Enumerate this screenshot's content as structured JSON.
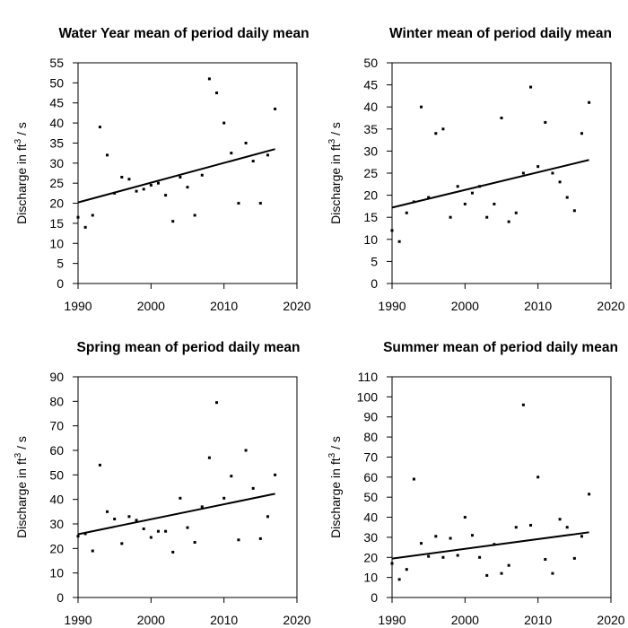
{
  "chart_data": [
    {
      "type": "scatter",
      "title": "Water Year mean of period daily mean",
      "ylabel": "Discharge in ft",
      "ylabel_sup": "3",
      "ylabel_suffix": " / s",
      "xlim": [
        1990,
        2020
      ],
      "ylim": [
        0,
        55
      ],
      "xticks": [
        1990,
        2000,
        2010,
        2020
      ],
      "yticks": [
        0,
        5,
        10,
        15,
        20,
        25,
        30,
        35,
        40,
        45,
        50,
        55
      ],
      "points": {
        "x": [
          1990,
          1991,
          1992,
          1993,
          1994,
          1995,
          1996,
          1997,
          1998,
          1999,
          2000,
          2001,
          2002,
          2003,
          2004,
          2005,
          2006,
          2007,
          2008,
          2009,
          2010,
          2011,
          2012,
          2013,
          2014,
          2015,
          2016,
          2017
        ],
        "y": [
          16.5,
          14,
          17,
          39,
          32,
          22.5,
          26.5,
          26,
          23,
          23.5,
          24.5,
          25,
          22,
          15.5,
          26.5,
          24,
          17,
          27,
          51,
          47.5,
          40,
          32.5,
          20,
          35,
          30.5,
          20,
          32,
          43.5
        ]
      },
      "trend": {
        "x": [
          1990,
          2017
        ],
        "y": [
          20.2,
          33.5
        ]
      }
    },
    {
      "type": "scatter",
      "title": "Winter mean of period daily mean",
      "ylabel": "Discharge in ft",
      "ylabel_sup": "3",
      "ylabel_suffix": " / s",
      "xlim": [
        1990,
        2020
      ],
      "ylim": [
        0,
        50
      ],
      "xticks": [
        1990,
        2000,
        2010,
        2020
      ],
      "yticks": [
        0,
        5,
        10,
        15,
        20,
        25,
        30,
        35,
        40,
        45,
        50
      ],
      "points": {
        "x": [
          1990,
          1991,
          1992,
          1993,
          1994,
          1995,
          1996,
          1997,
          1998,
          1999,
          2000,
          2001,
          2002,
          2003,
          2004,
          2005,
          2006,
          2007,
          2008,
          2009,
          2010,
          2011,
          2012,
          2013,
          2014,
          2015,
          2016,
          2017
        ],
        "y": [
          12,
          9.5,
          16,
          18.5,
          40,
          19.5,
          34,
          35,
          15,
          22,
          18,
          20.5,
          22,
          15,
          18,
          37.5,
          14,
          16,
          25,
          44.5,
          26.5,
          36.5,
          25,
          23,
          19.5,
          16.5,
          34,
          41
        ]
      },
      "trend": {
        "x": [
          1990,
          2017
        ],
        "y": [
          17.2,
          28
        ]
      }
    },
    {
      "type": "scatter",
      "title": "Spring mean of period daily mean",
      "ylabel": "Discharge in ft",
      "ylabel_sup": "3",
      "ylabel_suffix": " / s",
      "xlim": [
        1990,
        2020
      ],
      "ylim": [
        0,
        90
      ],
      "xticks": [
        1990,
        2000,
        2010,
        2020
      ],
      "yticks": [
        0,
        10,
        20,
        30,
        40,
        50,
        60,
        70,
        80,
        90
      ],
      "points": {
        "x": [
          1990,
          1991,
          1992,
          1993,
          1994,
          1995,
          1996,
          1997,
          1998,
          1999,
          2000,
          2001,
          2002,
          2003,
          2004,
          2005,
          2006,
          2007,
          2008,
          2009,
          2010,
          2011,
          2012,
          2013,
          2014,
          2015,
          2016,
          2017
        ],
        "y": [
          25,
          26,
          19,
          54,
          35,
          32,
          22,
          33,
          31.5,
          28,
          24.5,
          27,
          27,
          18.5,
          40.5,
          28.5,
          22.5,
          37,
          57,
          79.5,
          40.5,
          49.5,
          23.5,
          60,
          44.5,
          24,
          33,
          50
        ]
      },
      "trend": {
        "x": [
          1990,
          2017
        ],
        "y": [
          25.8,
          42.3
        ]
      }
    },
    {
      "type": "scatter",
      "title": "Summer mean of period daily mean",
      "ylabel": "Discharge in ft",
      "ylabel_sup": "3",
      "ylabel_suffix": " / s",
      "xlim": [
        1990,
        2020
      ],
      "ylim": [
        0,
        110
      ],
      "xticks": [
        1990,
        2000,
        2010,
        2020
      ],
      "yticks": [
        0,
        10,
        20,
        30,
        40,
        50,
        60,
        70,
        80,
        90,
        100,
        110
      ],
      "points": {
        "x": [
          1990,
          1991,
          1992,
          1993,
          1994,
          1995,
          1996,
          1997,
          1998,
          1999,
          2000,
          2001,
          2002,
          2003,
          2004,
          2005,
          2006,
          2007,
          2008,
          2009,
          2010,
          2011,
          2012,
          2013,
          2014,
          2015,
          2016,
          2017
        ],
        "y": [
          17,
          9,
          14,
          59,
          27,
          20.5,
          30.5,
          20,
          29.5,
          21,
          40,
          31,
          20,
          11,
          26.5,
          12,
          16,
          35,
          96,
          36,
          60,
          19,
          12,
          39,
          35,
          19.5,
          30.5,
          51.5
        ]
      },
      "trend": {
        "x": [
          1990,
          2017
        ],
        "y": [
          19.4,
          32.5
        ]
      }
    }
  ]
}
